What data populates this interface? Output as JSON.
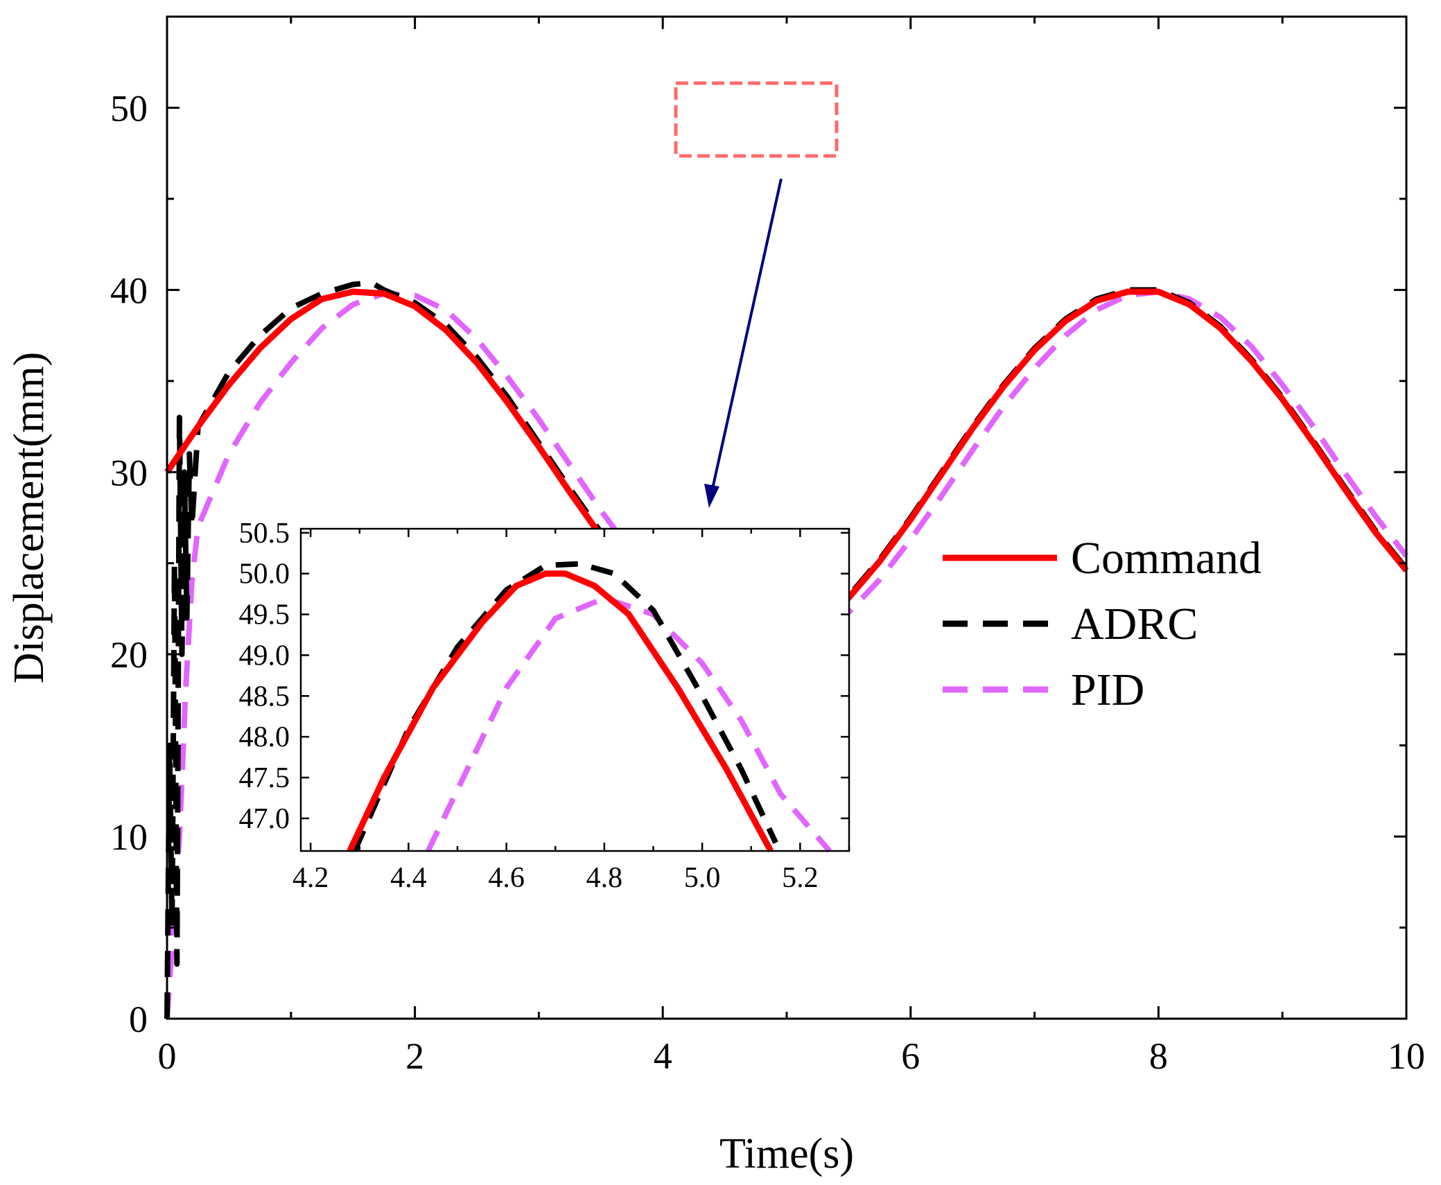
{
  "chart_data": [
    {
      "panel": "main",
      "type": "line",
      "xlabel": "Time(s)",
      "ylabel": "Displacement(mm)",
      "xlim": [
        0,
        10
      ],
      "ylim": [
        0,
        55
      ],
      "xticks": [
        0,
        2,
        4,
        6,
        8,
        10
      ],
      "yticks": [
        0,
        10,
        20,
        30,
        40,
        50
      ],
      "xtick_labels": [
        "0",
        "2",
        "4",
        "6",
        "8",
        "10"
      ],
      "ytick_labels": [
        "0",
        "10",
        "20",
        "30",
        "40",
        "50"
      ],
      "grid": false,
      "legend_position": "right",
      "series": [
        {
          "name": "Command",
          "color": "#ff0000",
          "style": "solid",
          "x": [
            0,
            0.25,
            0.5,
            0.75,
            1.0,
            1.25,
            1.5,
            1.75,
            2.0,
            2.25,
            2.5,
            2.75,
            3.0,
            3.25,
            3.5,
            3.75,
            4.0,
            4.25,
            4.5,
            4.75,
            5.0,
            5.25,
            5.5,
            5.75,
            6.0,
            6.25,
            6.5,
            6.75,
            7.0,
            7.25,
            7.5,
            7.75,
            8.0,
            8.25,
            8.5,
            8.75,
            9.0,
            9.25,
            9.5,
            9.75,
            10.0
          ],
          "y": [
            30.0,
            32.5,
            34.8,
            36.8,
            38.4,
            39.5,
            39.9,
            39.8,
            39.1,
            37.8,
            36.0,
            33.8,
            31.4,
            28.9,
            26.5,
            24.3,
            22.4,
            21.0,
            20.2,
            20.0,
            20.4,
            21.5,
            23.1,
            25.1,
            27.4,
            29.9,
            32.4,
            34.7,
            36.7,
            38.3,
            39.4,
            39.9,
            39.9,
            39.2,
            37.9,
            36.1,
            34.0,
            31.6,
            29.1,
            26.7,
            24.6
          ]
        },
        {
          "name": "ADRC",
          "color": "#000000",
          "style": "dashed",
          "x": [
            0,
            0.02,
            0.04,
            0.06,
            0.08,
            0.1,
            0.12,
            0.14,
            0.16,
            0.18,
            0.2,
            0.25,
            0.5,
            0.75,
            1.0,
            1.25,
            1.5,
            1.65,
            1.75,
            2.0,
            2.25,
            2.5,
            2.75,
            3.0,
            3.25,
            3.5,
            3.75,
            4.0,
            4.25,
            4.5,
            4.75,
            5.0,
            5.25,
            5.5,
            5.75,
            6.0,
            6.25,
            6.5,
            6.75,
            7.0,
            7.25,
            7.5,
            7.75,
            8.0,
            8.25,
            8.5,
            8.75,
            9.0,
            9.25,
            9.5,
            9.75,
            10.0
          ],
          "y": [
            0.0,
            15.0,
            5.0,
            25.0,
            3.0,
            33.0,
            20.0,
            30.0,
            22.0,
            31.0,
            27.0,
            32.5,
            35.5,
            37.5,
            39.0,
            39.8,
            40.3,
            40.4,
            40.0,
            39.3,
            38.1,
            36.3,
            34.1,
            31.6,
            29.1,
            26.7,
            24.5,
            22.6,
            21.2,
            20.3,
            20.0,
            20.5,
            21.6,
            23.2,
            25.2,
            27.5,
            30.0,
            32.5,
            34.8,
            36.8,
            38.4,
            39.5,
            40.0,
            40.0,
            39.3,
            38.0,
            36.2,
            34.1,
            31.7,
            29.2,
            26.8,
            24.7
          ]
        },
        {
          "name": "PID",
          "color": "#e066ff",
          "style": "dashed",
          "x": [
            0,
            0.05,
            0.1,
            0.15,
            0.2,
            0.25,
            0.5,
            0.75,
            1.0,
            1.25,
            1.5,
            1.75,
            2.0,
            2.25,
            2.5,
            2.75,
            3.0,
            3.25,
            3.5,
            3.75,
            4.0,
            4.25,
            4.5,
            4.75,
            5.0,
            5.25,
            5.5,
            5.75,
            6.0,
            6.25,
            6.5,
            6.75,
            7.0,
            7.25,
            7.5,
            7.75,
            8.0,
            8.25,
            8.5,
            8.75,
            9.0,
            9.25,
            9.5,
            9.75,
            10.0
          ],
          "y": [
            0.0,
            5.0,
            10.0,
            18.0,
            24.0,
            27.0,
            31.0,
            33.8,
            36.0,
            37.9,
            39.2,
            39.8,
            39.7,
            38.9,
            37.3,
            35.2,
            32.9,
            30.4,
            27.9,
            25.6,
            23.6,
            22.0,
            20.9,
            20.3,
            20.3,
            21.0,
            22.3,
            24.1,
            26.3,
            28.7,
            31.2,
            33.6,
            35.7,
            37.5,
            38.9,
            39.7,
            39.9,
            39.5,
            38.5,
            36.9,
            34.8,
            32.5,
            30.0,
            27.6,
            25.4
          ]
        }
      ]
    },
    {
      "panel": "inset",
      "type": "line",
      "xlim": [
        4.18,
        5.3
      ],
      "ylim": [
        46.6,
        50.55
      ],
      "xticks": [
        4.2,
        4.4,
        4.6,
        4.8,
        5.0,
        5.2
      ],
      "yticks": [
        47.0,
        47.5,
        48.0,
        48.5,
        49.0,
        49.5,
        50.0,
        50.5
      ],
      "xtick_labels": [
        "4.2",
        "4.4",
        "4.6",
        "4.8",
        "5.0",
        "5.2"
      ],
      "ytick_labels": [
        "47.0",
        "47.5",
        "48.0",
        "48.5",
        "49.0",
        "49.5",
        "50.0",
        "50.5"
      ],
      "grid": false,
      "series": [
        {
          "name": "Command",
          "color": "#ff0000",
          "style": "solid",
          "x": [
            4.28,
            4.35,
            4.45,
            4.55,
            4.62,
            4.68,
            4.72,
            4.78,
            4.85,
            4.95,
            5.05,
            5.14
          ],
          "y": [
            46.6,
            47.5,
            48.6,
            49.4,
            49.85,
            50.0,
            50.0,
            49.85,
            49.5,
            48.6,
            47.6,
            46.6
          ]
        },
        {
          "name": "ADRC",
          "color": "#000000",
          "style": "dashed",
          "x": [
            4.29,
            4.4,
            4.5,
            4.6,
            4.68,
            4.75,
            4.82,
            4.9,
            5.0,
            5.08,
            5.15
          ],
          "y": [
            46.6,
            48.1,
            49.1,
            49.8,
            50.1,
            50.12,
            50.0,
            49.55,
            48.5,
            47.6,
            46.7
          ]
        },
        {
          "name": "PID",
          "color": "#e066ff",
          "style": "dashed",
          "x": [
            4.44,
            4.52,
            4.6,
            4.7,
            4.8,
            4.9,
            5.0,
            5.08,
            5.16,
            5.26
          ],
          "y": [
            46.6,
            47.6,
            48.6,
            49.45,
            49.7,
            49.5,
            48.9,
            48.2,
            47.3,
            46.6
          ]
        }
      ]
    }
  ],
  "colors": {
    "command": "#ff0000",
    "adrc": "#000000",
    "pid": "#e066ff",
    "zoom_box": "#ff6a6a",
    "arrow": "#00007f"
  },
  "legend": [
    {
      "label": "Command",
      "color": "#ff0000",
      "style": "solid"
    },
    {
      "label": "ADRC",
      "color": "#000000",
      "style": "dashed"
    },
    {
      "label": "PID",
      "color": "#e066ff",
      "style": "dashed"
    }
  ]
}
